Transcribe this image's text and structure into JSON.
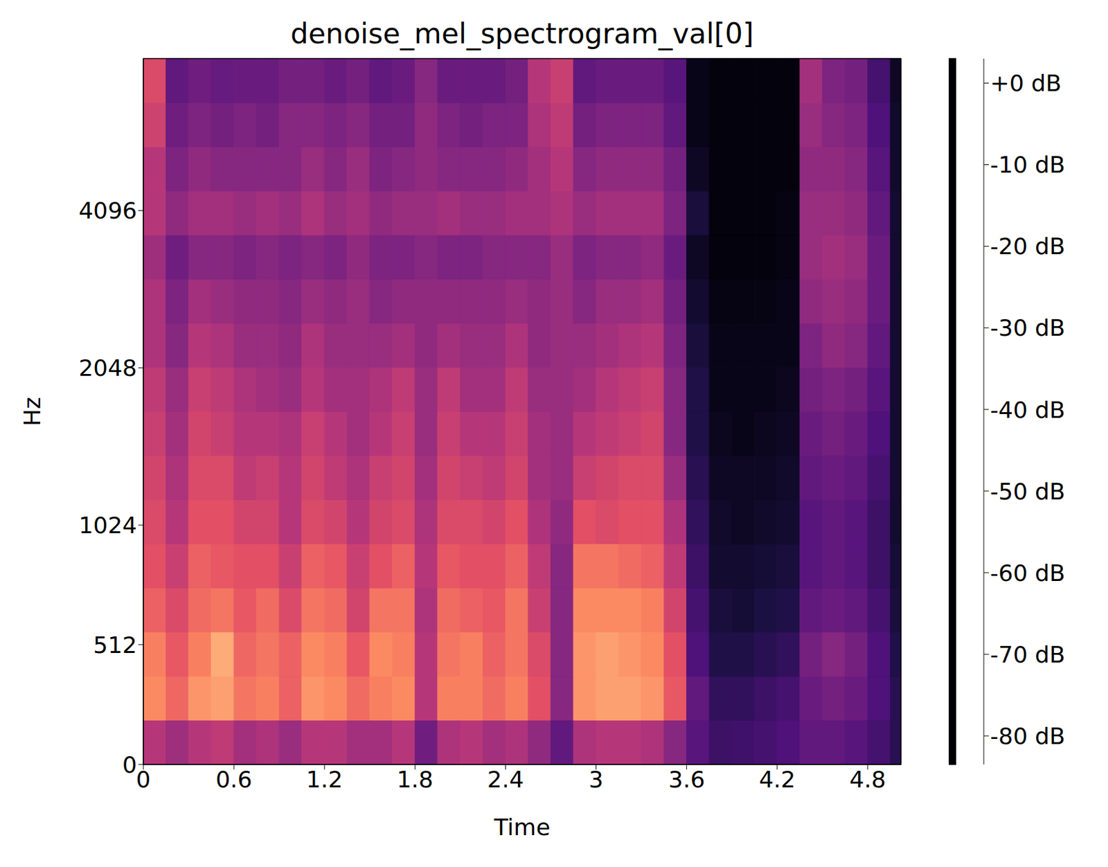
{
  "chart_data": {
    "type": "heatmap",
    "title": "denoise_mel_spectrogram_val[0]",
    "x_label": "Time",
    "y_label": "Hz",
    "xlim": [
      0,
      5.02
    ],
    "xticks": [
      0,
      0.6,
      1.2,
      1.8,
      2.4,
      3,
      3.6,
      4.2,
      4.8
    ],
    "ylim": [
      0,
      8000
    ],
    "yticks": [
      0,
      512,
      1024,
      2048,
      4096
    ],
    "x_edges": [
      0,
      0.15,
      0.3,
      0.45,
      0.6,
      0.75,
      0.9,
      1.05,
      1.2,
      1.35,
      1.5,
      1.65,
      1.8,
      1.95,
      2.1,
      2.25,
      2.4,
      2.55,
      2.7,
      2.85,
      3,
      3.15,
      3.3,
      3.45,
      3.6,
      3.75,
      3.9,
      4.05,
      4.2,
      4.35,
      4.5,
      4.65,
      4.8,
      4.95,
      5.02
    ],
    "y_edges": [
      0,
      189,
      377,
      566,
      754,
      943,
      1145,
      1391,
      1689,
      2051,
      2492,
      3026,
      3676,
      4465,
      5423,
      6586,
      8000
    ],
    "cells": [
      [
        -40,
        -18,
        -20,
        -26,
        -30,
        -32,
        -34,
        -36,
        -38,
        -42,
        -42,
        -45,
        -40,
        -40,
        -35,
        -32
      ],
      [
        -45,
        -25,
        -28,
        -32,
        -36,
        -40,
        -42,
        -44,
        -46,
        -50,
        -52,
        -55,
        -48,
        -52,
        -55,
        -58
      ],
      [
        -40,
        -16,
        -20,
        -24,
        -26,
        -30,
        -32,
        -34,
        -36,
        -40,
        -44,
        -50,
        -44,
        -48,
        -52,
        -55
      ],
      [
        -38,
        -14,
        -12,
        -22,
        -28,
        -30,
        -32,
        -36,
        -38,
        -42,
        -46,
        -50,
        -44,
        -50,
        -54,
        -57
      ],
      [
        -44,
        -22,
        -25,
        -28,
        -30,
        -34,
        -38,
        -40,
        -42,
        -46,
        -48,
        -52,
        -46,
        -50,
        -52,
        -56
      ],
      [
        -42,
        -20,
        -22,
        -24,
        -30,
        -34,
        -36,
        -40,
        -44,
        -46,
        -48,
        -50,
        -44,
        -50,
        -54,
        -56
      ],
      [
        -46,
        -26,
        -26,
        -32,
        -36,
        -40,
        -40,
        -42,
        -46,
        -48,
        -50,
        -52,
        -46,
        -50,
        -50,
        -54
      ],
      [
        -40,
        -16,
        -18,
        -22,
        -26,
        -32,
        -34,
        -36,
        -40,
        -42,
        -46,
        -50,
        -42,
        -46,
        -50,
        -54
      ],
      [
        -40,
        -18,
        -20,
        -24,
        -28,
        -34,
        -38,
        -40,
        -44,
        -46,
        -48,
        -52,
        -46,
        -50,
        -52,
        -56
      ],
      [
        -44,
        -24,
        -28,
        -34,
        -36,
        -40,
        -42,
        -44,
        -44,
        -46,
        -46,
        -48,
        -44,
        -46,
        -50,
        -54
      ],
      [
        -44,
        -20,
        -18,
        -22,
        -30,
        -34,
        -36,
        -40,
        -42,
        -46,
        -50,
        -52,
        -48,
        -52,
        -54,
        -58
      ],
      [
        -40,
        -18,
        -20,
        -22,
        -26,
        -32,
        -34,
        -36,
        -38,
        -44,
        -48,
        -52,
        -46,
        -50,
        -54,
        -56
      ],
      [
        -55,
        -40,
        -40,
        -42,
        -40,
        -42,
        -44,
        -46,
        -46,
        -48,
        -48,
        -50,
        -46,
        -48,
        -48,
        -50
      ],
      [
        -42,
        -20,
        -22,
        -24,
        -28,
        -32,
        -34,
        -36,
        -38,
        -44,
        -48,
        -52,
        -44,
        -50,
        -52,
        -56
      ],
      [
        -40,
        -20,
        -20,
        -26,
        -30,
        -32,
        -36,
        -40,
        -44,
        -46,
        -48,
        -52,
        -46,
        -50,
        -54,
        -56
      ],
      [
        -44,
        -24,
        -26,
        -28,
        -30,
        -34,
        -38,
        -40,
        -44,
        -46,
        -48,
        -50,
        -46,
        -50,
        -52,
        -56
      ],
      [
        -42,
        -20,
        -22,
        -22,
        -26,
        -30,
        -34,
        -36,
        -38,
        -42,
        -46,
        -50,
        -44,
        -48,
        -52,
        -54
      ],
      [
        -48,
        -30,
        -32,
        -36,
        -38,
        -42,
        -44,
        -44,
        -46,
        -48,
        -48,
        -50,
        -44,
        -44,
        -42,
        -40
      ],
      [
        -58,
        -50,
        -50,
        -50,
        -50,
        -48,
        -46,
        -46,
        -46,
        -46,
        -46,
        -46,
        -42,
        -40,
        -38,
        -36
      ],
      [
        -42,
        -16,
        -16,
        -18,
        -22,
        -30,
        -36,
        -40,
        -44,
        -46,
        -50,
        -52,
        -46,
        -50,
        -54,
        -58
      ],
      [
        -40,
        -14,
        -14,
        -18,
        -22,
        -32,
        -34,
        -38,
        -40,
        -44,
        -46,
        -50,
        -44,
        -48,
        -52,
        -56
      ],
      [
        -40,
        -14,
        -16,
        -18,
        -24,
        -30,
        -32,
        -36,
        -38,
        -42,
        -46,
        -50,
        -44,
        -48,
        -52,
        -56
      ],
      [
        -42,
        -16,
        -18,
        -20,
        -26,
        -30,
        -32,
        -34,
        -36,
        -40,
        -44,
        -48,
        -44,
        -48,
        -52,
        -56
      ],
      [
        -50,
        -28,
        -30,
        -34,
        -38,
        -42,
        -46,
        -50,
        -50,
        -52,
        -54,
        -56,
        -52,
        -54,
        -58,
        -60
      ],
      [
        -60,
        -58,
        -62,
        -64,
        -66,
        -68,
        -70,
        -72,
        -72,
        -74,
        -76,
        -78,
        -74,
        -78,
        -80,
        -80
      ],
      [
        -66,
        -68,
        -72,
        -74,
        -76,
        -77,
        -78,
        -79,
        -80,
        -80,
        -81,
        -82,
        -82,
        -82,
        -82,
        -82
      ],
      [
        -65,
        -68,
        -72,
        -75,
        -76,
        -78,
        -78,
        -80,
        -80,
        -80,
        -81,
        -82,
        -82,
        -82,
        -82,
        -82
      ],
      [
        -64,
        -66,
        -70,
        -73,
        -75,
        -77,
        -78,
        -79,
        -80,
        -80,
        -81,
        -82,
        -82,
        -82,
        -82,
        -82
      ],
      [
        -62,
        -64,
        -68,
        -72,
        -74,
        -76,
        -77,
        -78,
        -79,
        -80,
        -80,
        -81,
        -81,
        -82,
        -82,
        -82
      ],
      [
        -58,
        -56,
        -54,
        -58,
        -60,
        -60,
        -58,
        -56,
        -54,
        -52,
        -48,
        -46,
        -46,
        -48,
        -46,
        -44
      ],
      [
        -58,
        -54,
        -50,
        -56,
        -58,
        -58,
        -56,
        -54,
        -52,
        -48,
        -46,
        -44,
        -46,
        -48,
        -50,
        -52
      ],
      [
        -60,
        -56,
        -54,
        -58,
        -60,
        -60,
        -58,
        -56,
        -54,
        -50,
        -48,
        -46,
        -48,
        -50,
        -52,
        -54
      ],
      [
        -64,
        -62,
        -62,
        -64,
        -66,
        -66,
        -64,
        -62,
        -60,
        -58,
        -56,
        -56,
        -58,
        -60,
        -62,
        -64
      ],
      [
        -70,
        -70,
        -72,
        -74,
        -75,
        -76,
        -76,
        -76,
        -76,
        -76,
        -76,
        -76,
        -76,
        -77,
        -77,
        -78
      ]
    ],
    "colorbar": {
      "range": [
        -83.5,
        3
      ],
      "ticks": [
        {
          "value": 0,
          "label": "+0 dB"
        },
        {
          "value": -10,
          "label": "-10 dB"
        },
        {
          "value": -20,
          "label": "-20 dB"
        },
        {
          "value": -30,
          "label": "-30 dB"
        },
        {
          "value": -40,
          "label": "-40 dB"
        },
        {
          "value": -50,
          "label": "-50 dB"
        },
        {
          "value": -60,
          "label": "-60 dB"
        },
        {
          "value": -70,
          "label": "-70 dB"
        },
        {
          "value": -80,
          "label": "-80 dB"
        }
      ]
    }
  }
}
